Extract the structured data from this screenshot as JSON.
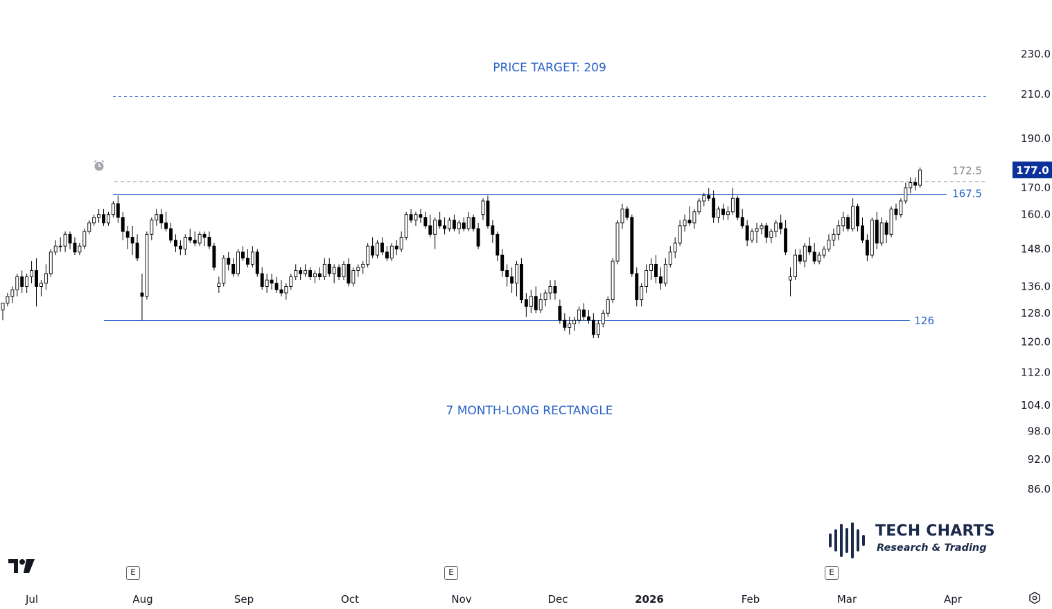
{
  "chart_data": {
    "type": "candlestick",
    "title": "",
    "x_tick_labels": [
      "Jul",
      "Aug",
      "Sep",
      "Oct",
      "Nov",
      "Dec",
      "2026",
      "Feb",
      "Mar",
      "Apr"
    ],
    "y_tick_labels": [
      "230.0",
      "210.0",
      "190.0",
      "170.0",
      "160.0",
      "148.0",
      "136.0",
      "128.0",
      "120.0",
      "112.0",
      "104.0",
      "98.0",
      "92.0",
      "86.0"
    ],
    "y_scale": "log",
    "last_price_label": "177.0",
    "last_price_color": "#0c3299",
    "levels": [
      {
        "name": "price_target",
        "value": 209,
        "style": "dashed",
        "color": "#2962c9"
      },
      {
        "name": "breakout",
        "value": 172.5,
        "label": "172.5",
        "style": "dashed",
        "color": "#888888"
      },
      {
        "name": "resistance",
        "value": 167.5,
        "label": "167.5",
        "style": "solid",
        "color": "#2962c9"
      },
      {
        "name": "support",
        "value": 126,
        "label": "126",
        "style": "solid",
        "color": "#2962c9"
      }
    ],
    "annotations": {
      "price_target": "PRICE TARGET: 209",
      "pattern": "7 MONTH-LONG RECTANGLE"
    },
    "earnings_markers": {
      "label": "E",
      "months": [
        "Aug",
        "Nov",
        "Mar"
      ]
    },
    "candles": [
      [
        129,
        131,
        126,
        131
      ],
      [
        131,
        134,
        130,
        133
      ],
      [
        133,
        136,
        131,
        135
      ],
      [
        135,
        140,
        133,
        139
      ],
      [
        139,
        141,
        134,
        136
      ],
      [
        136,
        140,
        134,
        139
      ],
      [
        139,
        144,
        137,
        141
      ],
      [
        141,
        145,
        130,
        136
      ],
      [
        136,
        138,
        133,
        137
      ],
      [
        137,
        143,
        135,
        140
      ],
      [
        140,
        148,
        139,
        147
      ],
      [
        147,
        151,
        146,
        149
      ],
      [
        149,
        152,
        147,
        149
      ],
      [
        149,
        154,
        147,
        153
      ],
      [
        153,
        154,
        148,
        150
      ],
      [
        150,
        152,
        146,
        147
      ],
      [
        147,
        150,
        146,
        149
      ],
      [
        149,
        155,
        148,
        154
      ],
      [
        154,
        158,
        153,
        157
      ],
      [
        157,
        160,
        156,
        159
      ],
      [
        159,
        162,
        157,
        160
      ],
      [
        160,
        162,
        156,
        157
      ],
      [
        157,
        161,
        156,
        160
      ],
      [
        160,
        165,
        159,
        164
      ],
      [
        164,
        167,
        157,
        159
      ],
      [
        159,
        161,
        151,
        154
      ],
      [
        154,
        156,
        148,
        152
      ],
      [
        152,
        156,
        146,
        150
      ],
      [
        150,
        153,
        144,
        145
      ],
      [
        134,
        140,
        126,
        133
      ],
      [
        133,
        154,
        132,
        153
      ],
      [
        153,
        159,
        151,
        158
      ],
      [
        158,
        162,
        156,
        160
      ],
      [
        160,
        162,
        155,
        157
      ],
      [
        157,
        161,
        154,
        155
      ],
      [
        155,
        157,
        150,
        151
      ],
      [
        151,
        153,
        147,
        149
      ],
      [
        149,
        151,
        146,
        148
      ],
      [
        148,
        153,
        146,
        152
      ],
      [
        152,
        155,
        150,
        151
      ],
      [
        151,
        154,
        149,
        150
      ],
      [
        150,
        154,
        149,
        153
      ],
      [
        153,
        154,
        149,
        152
      ],
      [
        152,
        154,
        148,
        149
      ],
      [
        149,
        150,
        141,
        142
      ],
      [
        136,
        139,
        134,
        137
      ],
      [
        137,
        146,
        136,
        145
      ],
      [
        145,
        147,
        141,
        143
      ],
      [
        143,
        145,
        139,
        140
      ],
      [
        140,
        148,
        139,
        147
      ],
      [
        147,
        149,
        144,
        145
      ],
      [
        145,
        148,
        142,
        143
      ],
      [
        143,
        149,
        142,
        147
      ],
      [
        147,
        148,
        139,
        140
      ],
      [
        140,
        142,
        135,
        136
      ],
      [
        136,
        140,
        134,
        138
      ],
      [
        138,
        140,
        135,
        137
      ],
      [
        137,
        139,
        134,
        135
      ],
      [
        135,
        138,
        133,
        134
      ],
      [
        134,
        137,
        132,
        136
      ],
      [
        136,
        140,
        135,
        139
      ],
      [
        139,
        143,
        138,
        141
      ],
      [
        141,
        142,
        138,
        140
      ],
      [
        140,
        143,
        139,
        141
      ],
      [
        141,
        142,
        138,
        139
      ],
      [
        139,
        141,
        137,
        140
      ],
      [
        140,
        142,
        138,
        139
      ],
      [
        139,
        145,
        138,
        143
      ],
      [
        143,
        145,
        139,
        140
      ],
      [
        140,
        143,
        137,
        142
      ],
      [
        142,
        143,
        138,
        139
      ],
      [
        139,
        144,
        138,
        143
      ],
      [
        143,
        145,
        136,
        137
      ],
      [
        137,
        142,
        136,
        141
      ],
      [
        141,
        143,
        139,
        142
      ],
      [
        142,
        144,
        140,
        143
      ],
      [
        143,
        150,
        142,
        149
      ],
      [
        149,
        152,
        145,
        146
      ],
      [
        146,
        151,
        145,
        150
      ],
      [
        150,
        152,
        146,
        147
      ],
      [
        147,
        149,
        144,
        145
      ],
      [
        145,
        150,
        144,
        149
      ],
      [
        149,
        151,
        146,
        148
      ],
      [
        148,
        154,
        147,
        152
      ],
      [
        152,
        161,
        151,
        160
      ],
      [
        160,
        162,
        157,
        158
      ],
      [
        158,
        161,
        156,
        160
      ],
      [
        160,
        162,
        157,
        159
      ],
      [
        159,
        161,
        155,
        156
      ],
      [
        156,
        160,
        152,
        153
      ],
      [
        153,
        159,
        148,
        158
      ],
      [
        158,
        161,
        155,
        156
      ],
      [
        156,
        159,
        153,
        155
      ],
      [
        155,
        159,
        154,
        158
      ],
      [
        158,
        160,
        154,
        155
      ],
      [
        155,
        158,
        153,
        157
      ],
      [
        157,
        159,
        154,
        155
      ],
      [
        155,
        161,
        154,
        159
      ],
      [
        159,
        160,
        154,
        155
      ],
      [
        155,
        157,
        148,
        149
      ],
      [
        160,
        166,
        158,
        165
      ],
      [
        165,
        167,
        155,
        156
      ],
      [
        156,
        158,
        150,
        153
      ],
      [
        153,
        154,
        144,
        146
      ],
      [
        146,
        148,
        139,
        141
      ],
      [
        141,
        143,
        136,
        139
      ],
      [
        139,
        142,
        134,
        137
      ],
      [
        137,
        144,
        133,
        143
      ],
      [
        143,
        145,
        131,
        132
      ],
      [
        132,
        134,
        127,
        130
      ],
      [
        130,
        135,
        128,
        133
      ],
      [
        133,
        136,
        128,
        129
      ],
      [
        129,
        134,
        128,
        132
      ],
      [
        132,
        135,
        130,
        134
      ],
      [
        134,
        138,
        132,
        136
      ],
      [
        136,
        138,
        132,
        134
      ],
      [
        130,
        132,
        125,
        126
      ],
      [
        126,
        128,
        123,
        124
      ],
      [
        124,
        127,
        122,
        125
      ],
      [
        125,
        127,
        123,
        126
      ],
      [
        126,
        130,
        125,
        129
      ],
      [
        129,
        131,
        126,
        127
      ],
      [
        127,
        129,
        125,
        126
      ],
      [
        126,
        128,
        121,
        122
      ],
      [
        122,
        126,
        121,
        125
      ],
      [
        125,
        129,
        124,
        128
      ],
      [
        128,
        133,
        127,
        132
      ],
      [
        132,
        145,
        131,
        144
      ],
      [
        144,
        158,
        143,
        157
      ],
      [
        157,
        164,
        155,
        162
      ],
      [
        162,
        163,
        158,
        159
      ],
      [
        159,
        160,
        139,
        140
      ],
      [
        140,
        142,
        130,
        132
      ],
      [
        132,
        137,
        130,
        136
      ],
      [
        136,
        143,
        134,
        141
      ],
      [
        141,
        145,
        138,
        143
      ],
      [
        143,
        146,
        137,
        139
      ],
      [
        139,
        142,
        135,
        137
      ],
      [
        137,
        145,
        136,
        143
      ],
      [
        143,
        149,
        142,
        147
      ],
      [
        147,
        152,
        145,
        150
      ],
      [
        150,
        158,
        149,
        156
      ],
      [
        156,
        160,
        154,
        158
      ],
      [
        158,
        163,
        156,
        157
      ],
      [
        157,
        162,
        155,
        161
      ],
      [
        161,
        166,
        160,
        165
      ],
      [
        165,
        168,
        163,
        167
      ],
      [
        167,
        170,
        165,
        166
      ],
      [
        166,
        169,
        157,
        159
      ],
      [
        159,
        163,
        157,
        162
      ],
      [
        162,
        164,
        158,
        160
      ],
      [
        160,
        163,
        158,
        161
      ],
      [
        161,
        170,
        160,
        166
      ],
      [
        166,
        167,
        158,
        159
      ],
      [
        159,
        162,
        155,
        156
      ],
      [
        156,
        158,
        149,
        151
      ],
      [
        151,
        155,
        150,
        154
      ],
      [
        154,
        157,
        150,
        155
      ],
      [
        155,
        157,
        153,
        156
      ],
      [
        156,
        157,
        150,
        152
      ],
      [
        152,
        155,
        150,
        154
      ],
      [
        154,
        158,
        152,
        157
      ],
      [
        157,
        160,
        153,
        155
      ],
      [
        155,
        158,
        146,
        147
      ],
      [
        138,
        142,
        133,
        139
      ],
      [
        139,
        148,
        138,
        146
      ],
      [
        146,
        148,
        143,
        144
      ],
      [
        144,
        150,
        142,
        149
      ],
      [
        149,
        152,
        146,
        147
      ],
      [
        147,
        150,
        143,
        144
      ],
      [
        144,
        147,
        143,
        146
      ],
      [
        146,
        149,
        145,
        148
      ],
      [
        148,
        153,
        147,
        151
      ],
      [
        151,
        155,
        149,
        153
      ],
      [
        153,
        158,
        151,
        156
      ],
      [
        156,
        161,
        154,
        159
      ],
      [
        159,
        160,
        154,
        155
      ],
      [
        155,
        166,
        154,
        163
      ],
      [
        163,
        164,
        154,
        156
      ],
      [
        156,
        159,
        150,
        151
      ],
      [
        151,
        153,
        144,
        146
      ],
      [
        146,
        159,
        145,
        158
      ],
      [
        158,
        161,
        148,
        150
      ],
      [
        150,
        159,
        149,
        157
      ],
      [
        157,
        158,
        150,
        153
      ],
      [
        153,
        163,
        152,
        162
      ],
      [
        162,
        164,
        158,
        160
      ],
      [
        160,
        166,
        159,
        165
      ],
      [
        165,
        172,
        164,
        170
      ],
      [
        170,
        174,
        168,
        172
      ],
      [
        172,
        174,
        169,
        171
      ],
      [
        171,
        178,
        170,
        177
      ]
    ]
  }
}
